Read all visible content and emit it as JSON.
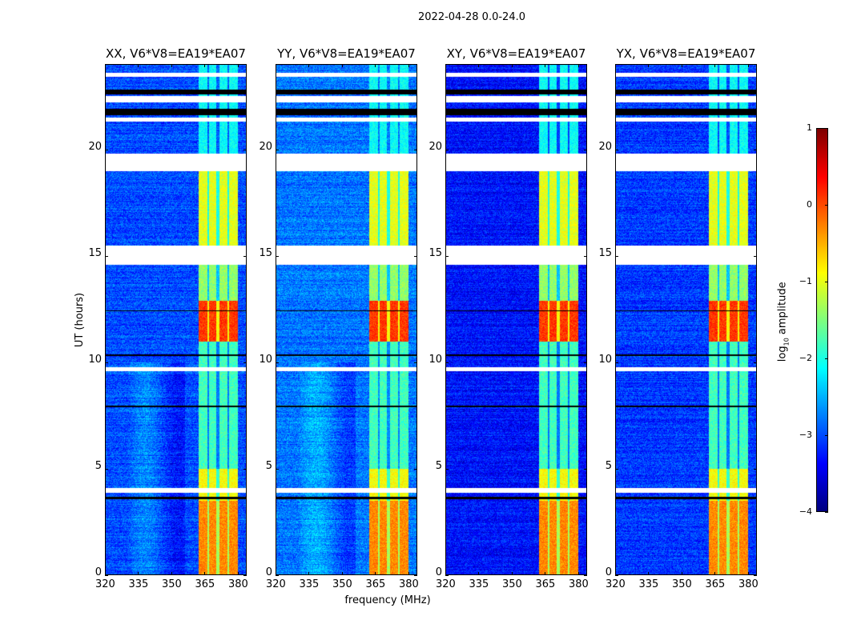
{
  "suptitle": "2022-04-28 0.0-24.0",
  "chart_data": {
    "type": "heatmap",
    "title": "2022-04-28 0.0-24.0",
    "xlabel": "frequency (MHz)",
    "ylabel": "UT (hours)",
    "xlim": [
      320,
      384
    ],
    "ylim": [
      0,
      24
    ],
    "xticks": [
      320,
      335,
      350,
      365,
      380
    ],
    "yticks": [
      0,
      5,
      10,
      15,
      20
    ],
    "panels": [
      {
        "title": "XX, V6*V8=EA19*EA07",
        "background_level": -3.0
      },
      {
        "title": "YY, V6*V8=EA19*EA07",
        "background_level": -2.8
      },
      {
        "title": "XY, V6*V8=EA19*EA07",
        "background_level": -3.3
      },
      {
        "title": "YX, V6*V8=EA19*EA07",
        "background_level": -3.1
      }
    ],
    "signal_channels_mhz": [
      [
        362,
        366
      ],
      [
        367,
        370
      ],
      [
        371.5,
        375
      ],
      [
        376,
        380
      ]
    ],
    "signal_level_by_time": [
      {
        "t": [
          0,
          3.5
        ],
        "level": -0.3
      },
      {
        "t": [
          3.5,
          5.0
        ],
        "level": -0.9
      },
      {
        "t": [
          5.0,
          11.0
        ],
        "level": -1.8
      },
      {
        "t": [
          11.0,
          12.9
        ],
        "level": 0.1
      },
      {
        "t": [
          12.9,
          14.6
        ],
        "level": -1.4
      },
      {
        "t": [
          15.5,
          19.0
        ],
        "level": -1.0
      },
      {
        "t": [
          19.6,
          24.0
        ],
        "level": -2.1
      }
    ],
    "flagged_white_hours": [
      [
        14.6,
        15.5
      ],
      [
        19.0,
        19.8
      ],
      [
        3.9,
        4.1
      ],
      [
        9.6,
        9.8
      ],
      [
        21.3,
        21.5
      ],
      [
        22.2,
        22.5
      ],
      [
        23.4,
        23.6
      ]
    ],
    "flagged_black_hours": [
      [
        21.6,
        21.9
      ],
      [
        22.6,
        22.8
      ],
      [
        7.9,
        8.0
      ],
      [
        3.6,
        3.7
      ],
      [
        10.3,
        10.4
      ],
      [
        12.4,
        12.45
      ],
      [
        15.45,
        15.5
      ]
    ],
    "colorbar": {
      "label": "log10 amplitude",
      "label_base": "log",
      "label_sub": "10",
      "label_rest": " amplitude",
      "range": [
        -4,
        1
      ],
      "ticks": [
        "1",
        "0",
        "−1",
        "−2",
        "−3",
        "−4"
      ],
      "colormap": "jet"
    }
  }
}
